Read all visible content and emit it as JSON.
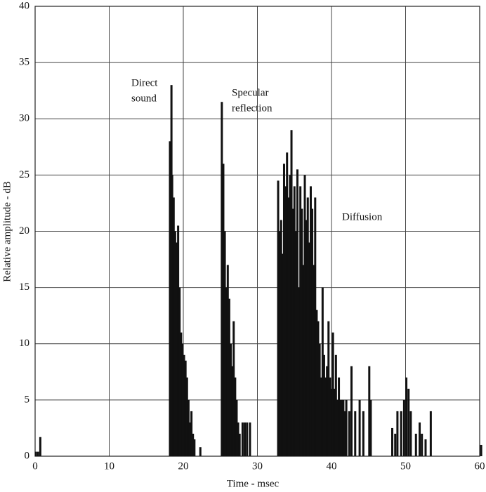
{
  "chart_data": {
    "type": "bar",
    "x_label": "Time - msec",
    "y_label": "Relative amplitude - dB",
    "annotations": [
      {
        "lines": [
          "Direct",
          "sound"
        ]
      },
      {
        "lines": [
          "Specular",
          "reflection"
        ]
      },
      {
        "lines": [
          "Diffusion"
        ]
      }
    ],
    "color": "#111111",
    "xlim": [
      0,
      60
    ],
    "ylim": [
      0,
      40
    ],
    "xticks": [
      0,
      10,
      20,
      30,
      40,
      50,
      60
    ],
    "yticks": [
      0,
      5,
      10,
      15,
      20,
      25,
      30,
      35,
      40
    ],
    "grid": true,
    "x": [
      0.1,
      0.4,
      0.7,
      18.2,
      18.4,
      18.5,
      18.7,
      18.9,
      19.1,
      19.3,
      19.5,
      19.7,
      19.9,
      20.1,
      20.3,
      20.5,
      20.7,
      20.9,
      21.1,
      21.3,
      21.5,
      22.3,
      25.2,
      25.4,
      25.6,
      25.8,
      26.0,
      26.2,
      26.4,
      26.6,
      26.8,
      27.0,
      27.2,
      27.4,
      27.6,
      28.0,
      28.3,
      28.6,
      29.0,
      32.8,
      33.0,
      33.2,
      33.4,
      33.6,
      33.8,
      34.0,
      34.2,
      34.4,
      34.6,
      34.8,
      35.0,
      35.2,
      35.4,
      35.6,
      35.8,
      36.0,
      36.2,
      36.4,
      36.6,
      36.8,
      37.0,
      37.2,
      37.4,
      37.6,
      37.8,
      38.0,
      38.2,
      38.4,
      38.6,
      38.8,
      39.0,
      39.2,
      39.4,
      39.6,
      39.8,
      40.0,
      40.2,
      40.4,
      40.6,
      40.8,
      41.0,
      41.2,
      41.4,
      41.6,
      41.8,
      42.0,
      42.4,
      42.7,
      43.2,
      43.8,
      44.3,
      45.1,
      45.3,
      48.2,
      48.6,
      48.9,
      49.4,
      49.8,
      50.1,
      50.4,
      50.7,
      51.4,
      51.9,
      52.2,
      52.7,
      53.4,
      60.2
    ],
    "values": [
      0.4,
      0.4,
      1.7,
      28,
      33,
      25,
      23,
      20,
      19,
      20.5,
      15,
      11,
      10,
      9,
      8.5,
      7,
      5,
      3,
      4,
      2,
      1.5,
      0.8,
      31.5,
      26,
      20,
      15,
      17,
      14,
      10,
      8,
      12,
      7,
      5,
      3,
      2,
      3,
      3,
      3,
      3,
      24.5,
      20,
      21,
      18,
      26,
      24,
      27,
      23,
      25,
      29,
      22,
      24,
      20,
      25.5,
      15,
      24,
      22,
      17,
      25,
      21,
      23,
      19,
      24,
      22,
      17,
      23,
      13,
      12,
      10,
      7,
      15,
      9,
      7,
      8,
      12,
      7,
      6,
      11,
      6,
      9,
      5,
      7,
      5,
      5,
      5,
      4,
      5,
      4,
      8,
      4,
      5,
      4,
      8,
      5,
      2.5,
      2,
      4,
      4,
      5,
      7,
      6,
      4,
      2,
      3,
      2,
      1.5,
      4,
      1
    ]
  }
}
